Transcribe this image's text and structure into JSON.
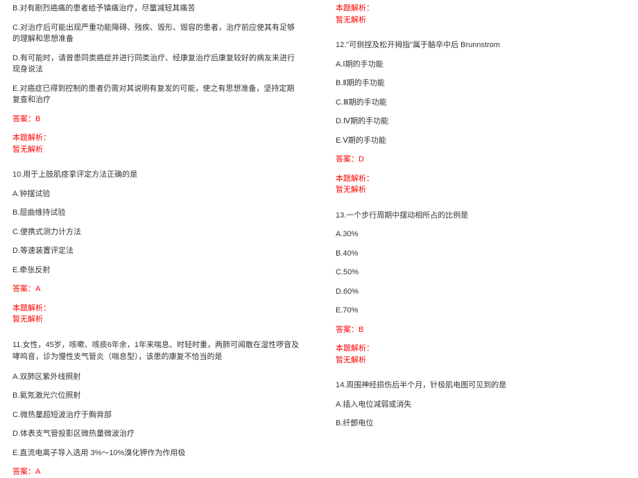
{
  "left": {
    "q9_b": "B.对有剧烈癌痛的患者给予镇痛治疗，尽量减轻其痛苦",
    "q9_c": "C.对治疗后可能出现严重功能障碍、残疾、毁形、毁容的患者，治疗前应使其有足够的理解和思想准备",
    "q9_d": "D.有可能时，请曾患同类癌症并进行同类治疗、经康复治疗后康复较好的病友来进行现身说法",
    "q9_e": "E.对癌症已得到控制的患者仍需对其说明有复发的可能，使之有思想准备，坚持定期复查和治疗",
    "q9_ans": "答案：B",
    "analysis_label": "本题解析：",
    "analysis_none": "暂无解析",
    "q10_title": "10.用于上肢肌痉挛评定方法正确的是",
    "q10_a": "A.钟摆试验",
    "q10_b": "B.屈曲维持试验",
    "q10_c": "C.便携式测力计方法",
    "q10_d": "D.等速装置评定法",
    "q10_e": "E.牵张反射",
    "q10_ans": "答案：A",
    "q11_title": "11.女性，45岁，咳嗽、咳痰6年余，1年来喘息、时轻时重，两肺可闻散在湿性啰音及哮鸣音，诊为慢性支气管炎（喘息型），该患的康复不恰当的是",
    "q11_a": "A.双肺区紫外线照射",
    "q11_b": "B.氦氖激光穴位照射",
    "q11_c": "C.微热量超短波治疗于胸背部",
    "q11_d": "D.体表支气管投影区微热量微波治疗",
    "q11_e": "E.直流电离子导入选用 3%～10%溴化钾作为作用极",
    "q11_ans": "答案：A"
  },
  "right": {
    "analysis_label": "本题解析：",
    "analysis_none": "暂无解析",
    "q12_title": "12.\"可侧捏及松开拇指\"属于脑卒中后 Brunnstrom",
    "q12_a": "A.Ⅰ期的手功能",
    "q12_b": "B.Ⅱ期的手功能",
    "q12_c": "C.Ⅲ期的手功能",
    "q12_d": "D.Ⅳ期的手功能",
    "q12_e": "E.Ⅴ期的手功能",
    "q12_ans": "答案：D",
    "q13_title": "13.一个步行周期中摆动相所占的比例是",
    "q13_a": "A.30%",
    "q13_b": "B.40%",
    "q13_c": "C.50%",
    "q13_d": "D.60%",
    "q13_e": "E.70%",
    "q13_ans": "答案：B",
    "q14_title": "14.周围神经损伤后半个月，针极肌电图可见到的是",
    "q14_a": "A.插入电位减弱或消失",
    "q14_b": "B.纤颤电位"
  }
}
